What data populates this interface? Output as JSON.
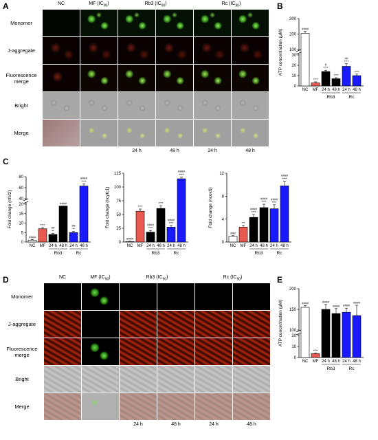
{
  "panels": {
    "A": {
      "label": "A",
      "columns": [
        "NC",
        "MF (IC90)",
        "Rb3 (IC90)",
        "Rc (IC90)"
      ],
      "rows": [
        "Monomer",
        "J-aggregate",
        "Fluorescence merge",
        "Bright",
        "Merge"
      ],
      "times": [
        "24 h",
        "48 h",
        "24 h",
        "48 h"
      ]
    },
    "D": {
      "label": "D",
      "columns": [
        "NC",
        "MF (IC90)",
        "Rb3 (IC90)",
        "Rc (IC90)"
      ],
      "rows": [
        "Monomer",
        "J-aggregate",
        "Fluorescence merge",
        "Bright",
        "Merge"
      ],
      "times": [
        "24 h",
        "48 h",
        "24 h",
        "48 h"
      ]
    },
    "B": {
      "label": "B"
    },
    "C": {
      "label": "C"
    },
    "E": {
      "label": "E"
    }
  },
  "colors": {
    "nc": "#ffffff",
    "mf": "#e85a4f",
    "rb3": "#000000",
    "rc": "#1a1aff"
  },
  "chart_data": [
    {
      "id": "B",
      "type": "bar",
      "categories": [
        "NC",
        "MF",
        "24 h",
        "48 h",
        "24 h",
        "48 h"
      ],
      "groups": [
        "Rb3",
        "Rc"
      ],
      "values": [
        205,
        3,
        14,
        7,
        19,
        10
      ],
      "errors": [
        12,
        1,
        1.2,
        1,
        2.5,
        1.5
      ],
      "stars": [
        "####",
        "****",
        "#\n****",
        "****",
        "##\n****",
        "****"
      ],
      "ylabel": "ATP concentration (μM)",
      "yticks_low": [
        0,
        10,
        20,
        30
      ],
      "yticks_high": [
        100,
        200,
        300
      ],
      "broken_axis": true
    },
    {
      "id": "C1",
      "type": "bar",
      "categories": [
        "NC",
        "MF",
        "24 h",
        "48 h",
        "24 h",
        "48 h"
      ],
      "groups": [
        "Rb3",
        "Rc"
      ],
      "values": [
        1,
        7,
        4,
        19,
        5,
        63
      ],
      "errors": [
        0.3,
        0.6,
        0.5,
        2,
        0.6,
        4
      ],
      "stars": [
        "####",
        "****",
        "##\n**",
        "####\n****",
        "##\n**",
        "####\n****"
      ],
      "ylabel": "Fold change (nfsf2)",
      "yticks_low": [
        0,
        5,
        10,
        15,
        20
      ],
      "yticks_high": [
        40,
        60,
        80
      ],
      "broken_axis": true
    },
    {
      "id": "C2",
      "type": "bar",
      "categories": [
        "NC",
        "MF",
        "24 h",
        "48 h",
        "24 h",
        "48 h"
      ],
      "groups": [
        "Rb3",
        "Rc"
      ],
      "values": [
        1,
        56,
        18,
        61,
        27,
        115
      ],
      "errors": [
        0.3,
        4,
        3,
        5,
        3,
        3
      ],
      "stars": [
        "####",
        "****",
        "####\n****",
        "****",
        "####\n****",
        "####\n****"
      ],
      "ylabel": "Fold change (ncytc1)",
      "yticks": [
        0,
        25,
        50,
        75,
        100,
        125
      ],
      "broken_axis": false
    },
    {
      "id": "C3",
      "type": "bar",
      "categories": [
        "NC",
        "MF",
        "24 h",
        "48 h",
        "24 h",
        "48 h"
      ],
      "groups": [
        "Rb3",
        "Rc"
      ],
      "values": [
        1,
        2.6,
        4.3,
        6,
        5.8,
        9.8
      ],
      "errors": [
        0.1,
        0.3,
        0.5,
        0.6,
        0.7,
        0.8
      ],
      "stars": [
        "###",
        "***",
        "####\n****",
        "####\n****",
        "####\n****",
        "####\n****"
      ],
      "ylabel": "Fold change (ncox6)",
      "yticks": [
        0,
        4,
        8,
        12
      ],
      "broken_axis": false
    },
    {
      "id": "E",
      "type": "bar",
      "categories": [
        "NC",
        "MF",
        "24 h",
        "48 h",
        "24 h",
        "48 h"
      ],
      "groups": [
        "Rb3",
        "Rc"
      ],
      "values": [
        155,
        3.5,
        150,
        140,
        143,
        135
      ],
      "errors": [
        4,
        0.5,
        12,
        12,
        10,
        25
      ],
      "stars": [
        "####",
        "****",
        "####",
        "####",
        "####",
        "####"
      ],
      "ylabel": "ATP concentration (μM)",
      "yticks_low": [
        0,
        10,
        20
      ],
      "yticks_high": [
        100,
        150,
        200
      ],
      "broken_axis": true
    }
  ]
}
